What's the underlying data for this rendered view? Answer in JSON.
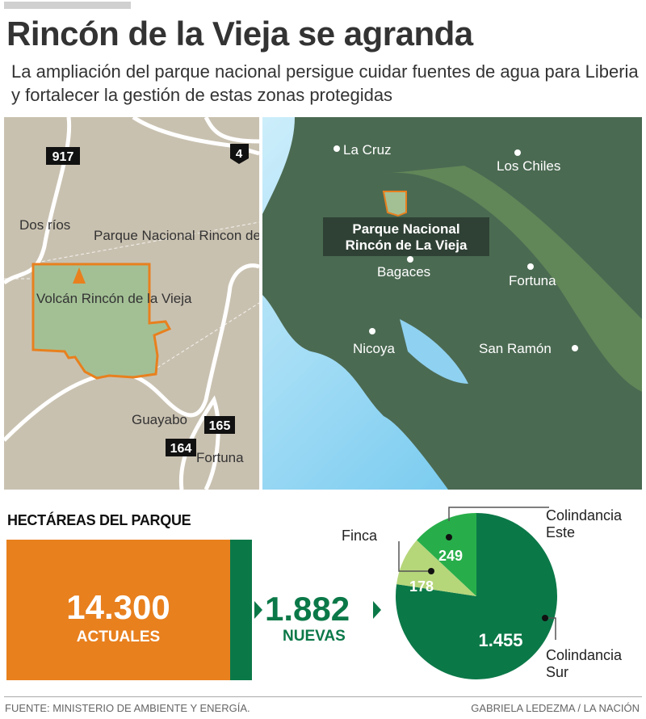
{
  "header": {
    "title": "Rincón de la Vieja se agranda",
    "subtitle": "La ampliación del parque nacional persigue cuidar fuentes de agua para Liberia y fortalecer la gestión de estas zonas protegidas"
  },
  "detail_map": {
    "routes": [
      "917",
      "4",
      "165",
      "164"
    ],
    "places": [
      "Dos ríos",
      "Guayabo",
      "Fortuna"
    ],
    "park_label": "Parque Nacional Rincon de la Vieja",
    "volcano_label": "Volcán Rincón de la Vieja",
    "colors": {
      "land": "#c9c1b0",
      "park": "#a3c095",
      "border": "#e8801e"
    }
  },
  "region_map": {
    "places": [
      "La Cruz",
      "Los Chiles",
      "Bagaces",
      "Fortuna",
      "Nicoya",
      "San Ramón"
    ],
    "park_label_1": "Parque Nacional",
    "park_label_2": "Rincón de La Vieja",
    "colors": {
      "land": "#4b6a52",
      "sea": "#8fd1f0"
    }
  },
  "stats": {
    "section_title": "HECTÁREAS DEL PARQUE",
    "current_value": "14.300",
    "current_label": "ACTUALES",
    "new_value": "1.882",
    "new_label": "NUEVAS",
    "colors": {
      "current": "#e8801e",
      "new": "#0b7848"
    }
  },
  "chart_data": {
    "type": "pie",
    "slices": [
      {
        "name": "Colindancia Sur",
        "value": 1455,
        "label": "1.455",
        "color": "#0b7848"
      },
      {
        "name": "Finca",
        "value": 178,
        "label": "178",
        "color": "#b6d67a"
      },
      {
        "name": "Colindancia Este",
        "value": 249,
        "label": "249",
        "color": "#27ae4a"
      }
    ]
  },
  "footer": {
    "source": "FUENTE: MINISTERIO DE AMBIENTE Y ENERGÍA.",
    "credit": "GABRIELA LEDEZMA  / LA NACIÓN"
  }
}
